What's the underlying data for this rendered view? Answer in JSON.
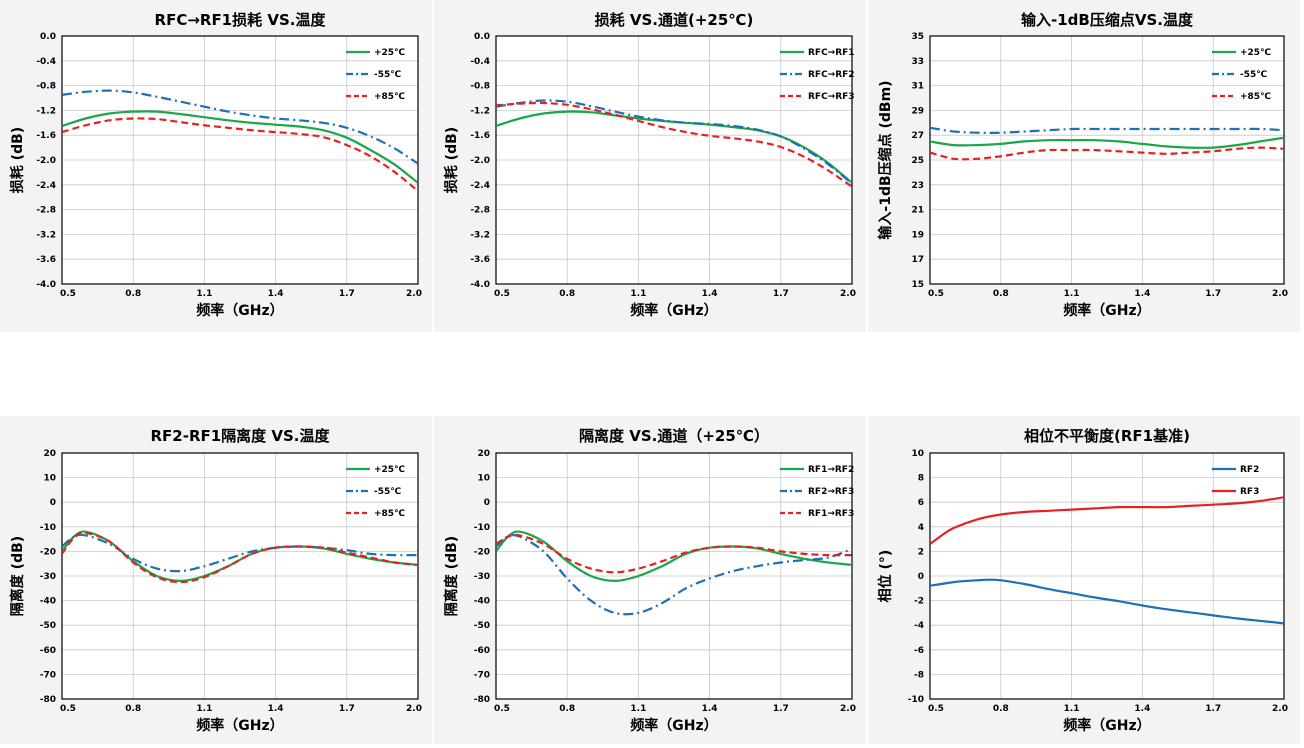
{
  "chart_data": [
    {
      "type": "line",
      "title": "RFC→RF1损耗 VS.温度",
      "xlabel": "频率（GHz）",
      "ylabel": "损耗 (dB)",
      "xlim": [
        0.5,
        2.0
      ],
      "ylim": [
        -4.0,
        0.0
      ],
      "xticks": [
        0.5,
        0.8,
        1.1,
        1.4,
        1.7,
        2.0
      ],
      "xtick_labels": [
        "0.5",
        "0.8",
        "1.1",
        "1.4",
        "1.7",
        "2.0"
      ],
      "yticks": [
        0.0,
        -0.4,
        -0.8,
        -1.2,
        -1.6,
        -2.0,
        -2.4,
        -2.8,
        -3.2,
        -3.6,
        -4.0
      ],
      "ytick_labels": [
        "0.0",
        "-0.4",
        "-0.8",
        "-1.2",
        "-1.6",
        "-2.0",
        "-2.4",
        "-2.8",
        "-3.2",
        "-3.6",
        "-4.0"
      ],
      "grid": true,
      "legend_position": "top-right",
      "series": [
        {
          "name": "+25℃",
          "color": "#1aa64b",
          "dash": "solid",
          "x": [
            0.5,
            0.6,
            0.7,
            0.8,
            0.9,
            1.0,
            1.1,
            1.2,
            1.3,
            1.4,
            1.5,
            1.6,
            1.7,
            1.8,
            1.9,
            2.0
          ],
          "y": [
            -1.45,
            -1.33,
            -1.25,
            -1.22,
            -1.22,
            -1.26,
            -1.31,
            -1.36,
            -1.4,
            -1.43,
            -1.46,
            -1.52,
            -1.64,
            -1.84,
            -2.07,
            -2.37
          ]
        },
        {
          "name": "-55℃",
          "color": "#1f6fb4",
          "dash": "dashdot",
          "x": [
            0.5,
            0.6,
            0.7,
            0.8,
            0.9,
            1.0,
            1.1,
            1.2,
            1.3,
            1.4,
            1.5,
            1.6,
            1.7,
            1.8,
            1.9,
            2.0
          ],
          "y": [
            -0.95,
            -0.9,
            -0.88,
            -0.91,
            -0.98,
            -1.06,
            -1.14,
            -1.22,
            -1.28,
            -1.33,
            -1.36,
            -1.4,
            -1.48,
            -1.62,
            -1.81,
            -2.06
          ]
        },
        {
          "name": "+85℃",
          "color": "#e52222",
          "dash": "dash",
          "x": [
            0.5,
            0.6,
            0.7,
            0.8,
            0.9,
            1.0,
            1.1,
            1.2,
            1.3,
            1.4,
            1.5,
            1.6,
            1.7,
            1.8,
            1.9,
            2.0
          ],
          "y": [
            -1.55,
            -1.44,
            -1.36,
            -1.33,
            -1.34,
            -1.39,
            -1.44,
            -1.48,
            -1.52,
            -1.55,
            -1.58,
            -1.63,
            -1.76,
            -1.94,
            -2.19,
            -2.5
          ]
        }
      ]
    },
    {
      "type": "line",
      "title": "损耗 VS.通道(+25℃)",
      "xlabel": "频率（GHz）",
      "ylabel": "损耗 (dB)",
      "xlim": [
        0.5,
        2.0
      ],
      "ylim": [
        -4.0,
        0.0
      ],
      "xticks": [
        0.5,
        0.8,
        1.1,
        1.4,
        1.7,
        2.0
      ],
      "xtick_labels": [
        "0.5",
        "0.8",
        "1.1",
        "1.4",
        "1.7",
        "2.0"
      ],
      "yticks": [
        0.0,
        -0.4,
        -0.8,
        -1.2,
        -1.6,
        -2.0,
        -2.4,
        -2.8,
        -3.2,
        -3.6,
        -4.0
      ],
      "ytick_labels": [
        "0.0",
        "-0.4",
        "-0.8",
        "-1.2",
        "-1.6",
        "-2.0",
        "-2.4",
        "-2.8",
        "-3.2",
        "-3.6",
        "-4.0"
      ],
      "grid": true,
      "legend_position": "top-right",
      "series": [
        {
          "name": "RFC→RF1",
          "color": "#1aa64b",
          "dash": "solid",
          "x": [
            0.5,
            0.6,
            0.7,
            0.8,
            0.9,
            1.0,
            1.1,
            1.2,
            1.3,
            1.4,
            1.5,
            1.6,
            1.7,
            1.8,
            1.9,
            2.0
          ],
          "y": [
            -1.45,
            -1.33,
            -1.25,
            -1.22,
            -1.23,
            -1.28,
            -1.33,
            -1.37,
            -1.4,
            -1.43,
            -1.47,
            -1.52,
            -1.62,
            -1.8,
            -2.05,
            -2.37
          ]
        },
        {
          "name": "RFC→RF2",
          "color": "#1f6fb4",
          "dash": "dashdot",
          "x": [
            0.5,
            0.6,
            0.7,
            0.8,
            0.9,
            1.0,
            1.1,
            1.2,
            1.3,
            1.4,
            1.5,
            1.6,
            1.7,
            1.8,
            1.9,
            2.0
          ],
          "y": [
            -1.14,
            -1.08,
            -1.04,
            -1.06,
            -1.13,
            -1.22,
            -1.3,
            -1.36,
            -1.4,
            -1.42,
            -1.45,
            -1.51,
            -1.62,
            -1.82,
            -2.07,
            -2.38
          ]
        },
        {
          "name": "RFC→RF3",
          "color": "#e52222",
          "dash": "dash",
          "x": [
            0.5,
            0.6,
            0.7,
            0.8,
            0.9,
            1.0,
            1.1,
            1.2,
            1.3,
            1.4,
            1.5,
            1.6,
            1.7,
            1.8,
            1.9,
            2.0
          ],
          "y": [
            -1.12,
            -1.09,
            -1.08,
            -1.11,
            -1.18,
            -1.27,
            -1.37,
            -1.47,
            -1.55,
            -1.61,
            -1.65,
            -1.7,
            -1.79,
            -1.95,
            -2.17,
            -2.43
          ]
        }
      ]
    },
    {
      "type": "line",
      "title": "输入-1dB压缩点VS.温度",
      "xlabel": "频率（GHz）",
      "ylabel": "输入-1dB压缩点 (dBm)",
      "xlim": [
        0.5,
        2.0
      ],
      "ylim": [
        15,
        35
      ],
      "xticks": [
        0.5,
        0.8,
        1.1,
        1.4,
        1.7,
        2.0
      ],
      "xtick_labels": [
        "0.5",
        "0.8",
        "1.1",
        "1.4",
        "1.7",
        "2.0"
      ],
      "yticks": [
        15,
        17,
        19,
        21,
        23,
        25,
        27,
        29,
        31,
        33,
        35
      ],
      "ytick_labels": [
        "15",
        "17",
        "19",
        "21",
        "23",
        "25",
        "27",
        "29",
        "31",
        "33",
        "35"
      ],
      "grid": true,
      "legend_position": "top-right",
      "series": [
        {
          "name": "+25℃",
          "color": "#1aa64b",
          "dash": "solid",
          "x": [
            0.5,
            0.6,
            0.7,
            0.8,
            0.9,
            1.0,
            1.1,
            1.2,
            1.3,
            1.4,
            1.5,
            1.6,
            1.7,
            1.8,
            1.9,
            2.0
          ],
          "y": [
            26.5,
            26.2,
            26.2,
            26.3,
            26.5,
            26.6,
            26.6,
            26.6,
            26.5,
            26.3,
            26.1,
            26.0,
            26.0,
            26.2,
            26.5,
            26.8
          ]
        },
        {
          "name": "-55℃",
          "color": "#1f6fb4",
          "dash": "dashdot",
          "x": [
            0.5,
            0.6,
            0.7,
            0.8,
            0.9,
            1.0,
            1.1,
            1.2,
            1.3,
            1.4,
            1.5,
            1.6,
            1.7,
            1.8,
            1.9,
            2.0
          ],
          "y": [
            27.6,
            27.3,
            27.2,
            27.2,
            27.3,
            27.4,
            27.5,
            27.5,
            27.5,
            27.5,
            27.5,
            27.5,
            27.5,
            27.5,
            27.5,
            27.4
          ]
        },
        {
          "name": "+85℃",
          "color": "#e52222",
          "dash": "dash",
          "x": [
            0.5,
            0.6,
            0.7,
            0.8,
            0.9,
            1.0,
            1.1,
            1.2,
            1.3,
            1.4,
            1.5,
            1.6,
            1.7,
            1.8,
            1.9,
            2.0
          ],
          "y": [
            25.6,
            25.1,
            25.1,
            25.3,
            25.6,
            25.8,
            25.8,
            25.8,
            25.7,
            25.6,
            25.5,
            25.6,
            25.7,
            25.9,
            26.0,
            25.9
          ]
        }
      ]
    },
    {
      "type": "line",
      "title": "RF2-RF1隔离度 VS.温度",
      "xlabel": "频率（GHz）",
      "ylabel": "隔离度 (dB)",
      "xlim": [
        0.5,
        2.0
      ],
      "ylim": [
        -80,
        20
      ],
      "xticks": [
        0.5,
        0.8,
        1.1,
        1.4,
        1.7,
        2.0
      ],
      "xtick_labels": [
        "0.5",
        "0.8",
        "1.1",
        "1.4",
        "1.7",
        "2.0"
      ],
      "yticks": [
        20,
        10,
        0,
        -10,
        -20,
        -30,
        -40,
        -50,
        -60,
        -70,
        -80
      ],
      "ytick_labels": [
        "20",
        "10",
        "0",
        "-10",
        "-20",
        "-30",
        "-40",
        "-50",
        "-60",
        "-70",
        "-80"
      ],
      "grid": true,
      "legend_position": "top-right",
      "series": [
        {
          "name": "+25℃",
          "color": "#1aa64b",
          "dash": "solid",
          "x": [
            0.5,
            0.55,
            0.6,
            0.7,
            0.8,
            0.9,
            1.0,
            1.1,
            1.2,
            1.3,
            1.4,
            1.5,
            1.6,
            1.7,
            1.8,
            1.9,
            2.0
          ],
          "y": [
            -20,
            -14,
            -12,
            -16,
            -24,
            -30,
            -32,
            -30,
            -26,
            -21,
            -18.5,
            -18,
            -18.8,
            -21,
            -23,
            -24.5,
            -25.5
          ]
        },
        {
          "name": "-55℃",
          "color": "#1f6fb4",
          "dash": "dashdot",
          "x": [
            0.5,
            0.55,
            0.6,
            0.7,
            0.8,
            0.9,
            1.0,
            1.1,
            1.2,
            1.3,
            1.4,
            1.5,
            1.6,
            1.7,
            1.8,
            1.9,
            2.0
          ],
          "y": [
            -18,
            -14,
            -13.5,
            -17,
            -23,
            -27,
            -28,
            -26,
            -23,
            -20,
            -18.5,
            -18,
            -18.5,
            -19.5,
            -21,
            -21.5,
            -21.5
          ]
        },
        {
          "name": "+85℃",
          "color": "#e52222",
          "dash": "dash",
          "x": [
            0.5,
            0.55,
            0.6,
            0.7,
            0.8,
            0.9,
            1.0,
            1.1,
            1.2,
            1.3,
            1.4,
            1.5,
            1.6,
            1.7,
            1.8,
            1.9,
            2.0
          ],
          "y": [
            -21,
            -14.5,
            -12.5,
            -16,
            -24.5,
            -30.5,
            -32.5,
            -30.5,
            -26,
            -21,
            -18.5,
            -18,
            -18.5,
            -20.5,
            -22.5,
            -24.5,
            -25.5
          ]
        }
      ]
    },
    {
      "type": "line",
      "title": "隔离度 VS.通道（+25℃）",
      "xlabel": "频率（GHz）",
      "ylabel": "隔离度 (dB)",
      "xlim": [
        0.5,
        2.0
      ],
      "ylim": [
        -80,
        20
      ],
      "xticks": [
        0.5,
        0.8,
        1.1,
        1.4,
        1.7,
        2.0
      ],
      "xtick_labels": [
        "0.5",
        "0.8",
        "1.1",
        "1.4",
        "1.7",
        "2.0"
      ],
      "yticks": [
        20,
        10,
        0,
        -10,
        -20,
        -30,
        -40,
        -50,
        -60,
        -70,
        -80
      ],
      "ytick_labels": [
        "20",
        "10",
        "0",
        "-10",
        "-20",
        "-30",
        "-40",
        "-50",
        "-60",
        "-70",
        "-80"
      ],
      "grid": true,
      "legend_position": "top-right",
      "series": [
        {
          "name": "RF1→RF2",
          "color": "#1aa64b",
          "dash": "solid",
          "x": [
            0.5,
            0.55,
            0.6,
            0.7,
            0.8,
            0.9,
            1.0,
            1.1,
            1.2,
            1.3,
            1.4,
            1.5,
            1.6,
            1.7,
            1.8,
            1.9,
            2.0
          ],
          "y": [
            -20,
            -14,
            -12,
            -16,
            -24,
            -30,
            -32,
            -30,
            -26,
            -21,
            -18.5,
            -18,
            -18.8,
            -21,
            -23,
            -24.5,
            -25.5
          ]
        },
        {
          "name": "RF2→RF3",
          "color": "#1f6fb4",
          "dash": "dashdot",
          "x": [
            0.5,
            0.55,
            0.6,
            0.7,
            0.8,
            0.9,
            1.0,
            1.1,
            1.2,
            1.3,
            1.4,
            1.5,
            1.6,
            1.7,
            1.8,
            1.9,
            2.0
          ],
          "y": [
            -18,
            -14,
            -14,
            -20,
            -31,
            -40,
            -45,
            -45,
            -41,
            -35,
            -31,
            -28,
            -26,
            -24.5,
            -23.5,
            -22.5,
            -19
          ]
        },
        {
          "name": "RF1→RF3",
          "color": "#e52222",
          "dash": "dash",
          "x": [
            0.5,
            0.55,
            0.6,
            0.7,
            0.8,
            0.9,
            1.0,
            1.1,
            1.2,
            1.3,
            1.4,
            1.5,
            1.6,
            1.7,
            1.8,
            1.9,
            2.0
          ],
          "y": [
            -17,
            -14,
            -13.5,
            -17,
            -23,
            -27,
            -28.5,
            -27,
            -24,
            -20.5,
            -18.5,
            -18,
            -18.5,
            -20,
            -21,
            -21.5,
            -21.5
          ]
        }
      ]
    },
    {
      "type": "line",
      "title": "相位不平衡度(RF1基准)",
      "xlabel": "频率（GHz）",
      "ylabel": "相位 (°)",
      "xlim": [
        0.5,
        2.0
      ],
      "ylim": [
        -10,
        10
      ],
      "xticks": [
        0.5,
        0.8,
        1.1,
        1.4,
        1.7,
        2.0
      ],
      "xtick_labels": [
        "0.5",
        "0.8",
        "1.1",
        "1.4",
        "1.7",
        "2.0"
      ],
      "yticks": [
        10,
        8,
        6,
        4,
        2,
        0,
        -2,
        -4,
        -6,
        -8,
        -10
      ],
      "ytick_labels": [
        "10",
        "8",
        "6",
        "4",
        "2",
        "0",
        "-2",
        "-4",
        "-6",
        "-8",
        "-10"
      ],
      "grid": true,
      "legend_position": "top-right",
      "series": [
        {
          "name": "RF2",
          "color": "#1f6fb4",
          "dash": "solid",
          "x": [
            0.5,
            0.6,
            0.7,
            0.75,
            0.8,
            0.9,
            1.0,
            1.1,
            1.2,
            1.3,
            1.4,
            1.5,
            1.6,
            1.7,
            1.8,
            1.9,
            2.0
          ],
          "y": [
            -0.8,
            -0.5,
            -0.35,
            -0.3,
            -0.35,
            -0.65,
            -1.05,
            -1.4,
            -1.75,
            -2.05,
            -2.4,
            -2.7,
            -2.95,
            -3.2,
            -3.45,
            -3.65,
            -3.85
          ]
        },
        {
          "name": "RF3",
          "color": "#e52222",
          "dash": "solid",
          "x": [
            0.5,
            0.55,
            0.6,
            0.7,
            0.8,
            0.9,
            1.0,
            1.1,
            1.2,
            1.3,
            1.4,
            1.5,
            1.6,
            1.7,
            1.8,
            1.9,
            2.0
          ],
          "y": [
            2.6,
            3.3,
            3.9,
            4.6,
            5.0,
            5.2,
            5.3,
            5.4,
            5.5,
            5.6,
            5.6,
            5.6,
            5.7,
            5.8,
            5.9,
            6.1,
            6.4
          ]
        }
      ]
    }
  ]
}
